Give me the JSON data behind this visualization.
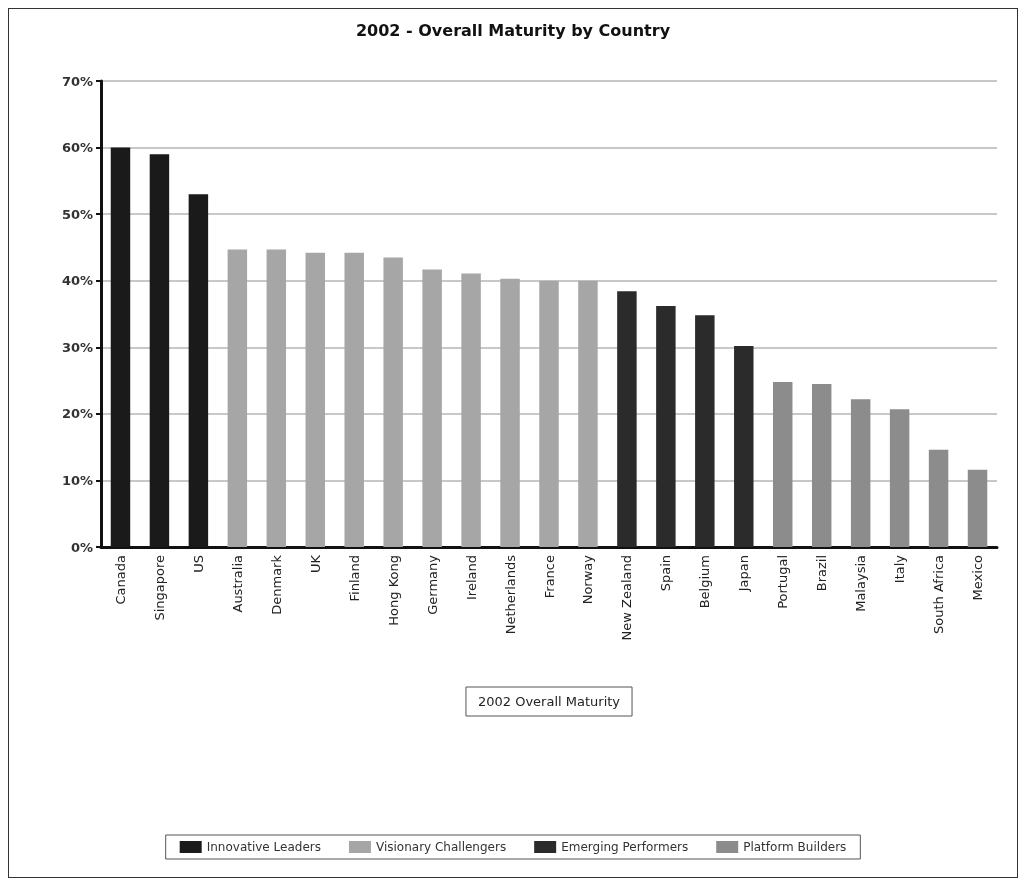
{
  "chart_data": {
    "type": "bar",
    "title": "2002 - Overall Maturity by Country",
    "xlabel": "2002 Overall Maturity",
    "categories": [
      "Canada",
      "Singapore",
      "US",
      "Australia",
      "Denmark",
      "UK",
      "Finland",
      "Hong Kong",
      "Germany",
      "Ireland",
      "Netherlands",
      "France",
      "Norway",
      "New Zealand",
      "Spain",
      "Belgium",
      "Japan",
      "Portugal",
      "Brazil",
      "Malaysia",
      "Italy",
      "South Africa",
      "Mexico"
    ],
    "series": [
      {
        "name": "Innovative Leaders",
        "color": "#1a1a1a",
        "values": [
          60,
          59,
          53,
          null,
          null,
          null,
          null,
          null,
          null,
          null,
          null,
          null,
          null,
          null,
          null,
          null,
          null,
          null,
          null,
          null,
          null,
          null,
          null
        ]
      },
      {
        "name": "Visionary Challengers",
        "color": "#a6a6a6",
        "values": [
          null,
          null,
          null,
          44.7,
          44.7,
          44.2,
          44.2,
          43.5,
          41.7,
          41.1,
          40.3,
          40,
          40,
          null,
          null,
          null,
          null,
          null,
          null,
          null,
          null,
          null,
          null
        ]
      },
      {
        "name": "Emerging Performers",
        "color": "#2b2b2b",
        "values": [
          null,
          null,
          null,
          null,
          null,
          null,
          null,
          null,
          null,
          null,
          null,
          null,
          null,
          38.4,
          36.2,
          34.8,
          30.2,
          null,
          null,
          null,
          null,
          null,
          null
        ]
      },
      {
        "name": "Platform Builders",
        "color": "#8c8c8c",
        "values": [
          null,
          null,
          null,
          null,
          null,
          null,
          null,
          null,
          null,
          null,
          null,
          null,
          null,
          null,
          null,
          null,
          null,
          24.8,
          24.5,
          22.2,
          20.7,
          14.6,
          11.6
        ]
      }
    ],
    "ylim": [
      0,
      70
    ],
    "yticks": [
      {
        "value": 0,
        "label": "0%"
      },
      {
        "value": 10,
        "label": "10%"
      },
      {
        "value": 20,
        "label": "20%"
      },
      {
        "value": 30,
        "label": "30%"
      },
      {
        "value": 40,
        "label": "40%"
      },
      {
        "value": 50,
        "label": "50%"
      },
      {
        "value": 60,
        "label": "60%"
      },
      {
        "value": 70,
        "label": "70%"
      }
    ],
    "grid": "y",
    "legend": "bottom"
  }
}
